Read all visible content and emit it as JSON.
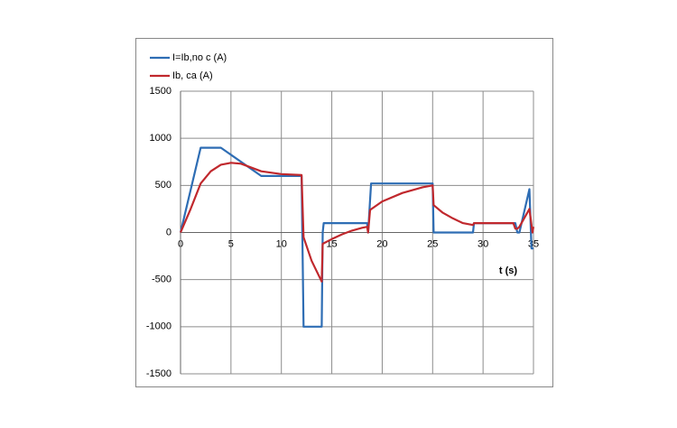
{
  "chart_data": {
    "type": "line",
    "x_label": "t (s)",
    "xlim": [
      0,
      35
    ],
    "xticks": [
      0,
      5,
      10,
      15,
      20,
      25,
      30,
      35
    ],
    "ylim": [
      -1500,
      1500
    ],
    "yticks": [
      -1500,
      -1000,
      -500,
      0,
      500,
      1000,
      1500
    ],
    "grid": true,
    "legend": "top-left",
    "series": [
      {
        "name": "I=Ib,no c (A)",
        "color": "#2e6db4",
        "x": [
          0,
          2,
          4,
          8,
          12,
          12.2,
          14,
          14.1,
          14.2,
          18.5,
          18.6,
          18.9,
          25,
          25.1,
          29,
          29.1,
          33.2,
          33.4,
          33.6,
          34.6,
          34.8,
          35
        ],
        "values": [
          0,
          900,
          900,
          600,
          600,
          -1000,
          -1000,
          0,
          100,
          100,
          0,
          520,
          520,
          0,
          0,
          100,
          100,
          0,
          0,
          460,
          -170,
          -170
        ]
      },
      {
        "name": "Ib, ca (A)",
        "color": "#c0282d",
        "x": [
          0,
          1,
          2,
          3,
          4,
          5,
          6,
          8,
          10,
          12,
          12.2,
          13,
          14,
          14.1,
          15,
          16,
          17,
          18,
          18.5,
          18.6,
          18.8,
          20,
          22,
          24,
          25,
          25.1,
          26,
          27,
          28,
          29,
          29.1,
          33,
          33.2,
          33.4,
          33.6,
          34.6,
          34.9,
          35
        ],
        "values": [
          0,
          250,
          520,
          650,
          720,
          740,
          730,
          650,
          620,
          610,
          -50,
          -300,
          -520,
          -120,
          -70,
          -20,
          20,
          50,
          60,
          0,
          240,
          330,
          420,
          480,
          500,
          290,
          210,
          150,
          100,
          80,
          100,
          100,
          40,
          40,
          60,
          250,
          0,
          60
        ]
      }
    ]
  }
}
